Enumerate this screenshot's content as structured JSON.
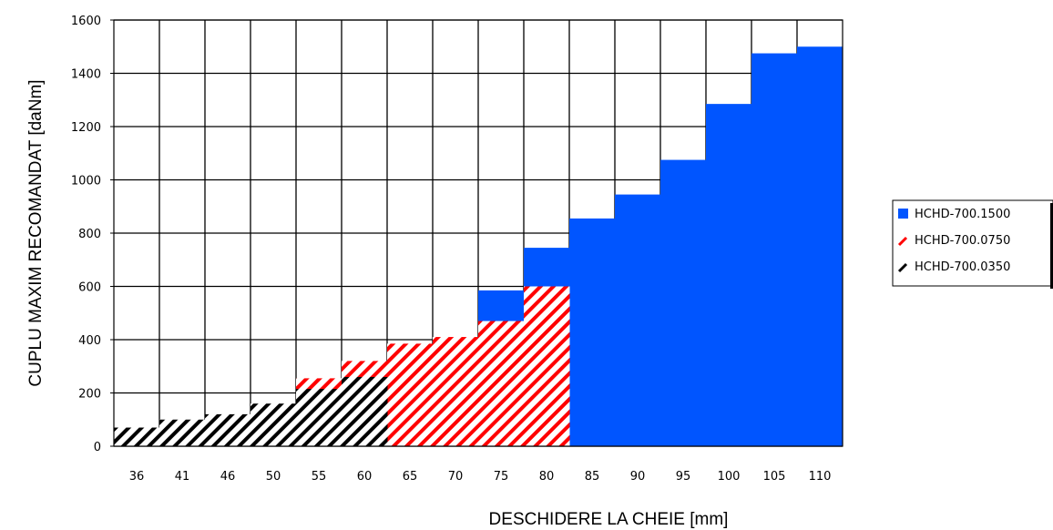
{
  "chart_data": {
    "type": "bar",
    "xlabel": "DESCHIDERE LA CHEIE [mm]",
    "ylabel": "CUPLU MAXIM RECOMANDAT [daNm]",
    "ylim": [
      0,
      1600
    ],
    "yticks": [
      "0",
      "200",
      "400",
      "600",
      "800",
      "1000",
      "1200",
      "1400",
      "1600"
    ],
    "categories": [
      "36",
      "41",
      "46",
      "50",
      "55",
      "60",
      "65",
      "70",
      "75",
      "80",
      "85",
      "90",
      "95",
      "100",
      "105",
      "110"
    ],
    "grid": true,
    "legend_position": "right",
    "series": [
      {
        "name": "HCHD-700.1500",
        "color": "#0055ff",
        "pattern": "solid",
        "values": [
          null,
          null,
          null,
          null,
          null,
          null,
          null,
          null,
          585,
          745,
          855,
          945,
          1075,
          1285,
          1475,
          1500
        ]
      },
      {
        "name": "HCHD-700.0750",
        "color": "#ff0000",
        "pattern": "hatch",
        "values": [
          null,
          null,
          null,
          null,
          255,
          320,
          385,
          410,
          470,
          600,
          null,
          null,
          null,
          null,
          null,
          null
        ]
      },
      {
        "name": "HCHD-700.0350",
        "color": "#000000",
        "pattern": "hatch",
        "values": [
          70,
          100,
          120,
          160,
          215,
          260,
          null,
          null,
          null,
          null,
          null,
          null,
          null,
          null,
          null,
          null
        ]
      }
    ]
  }
}
